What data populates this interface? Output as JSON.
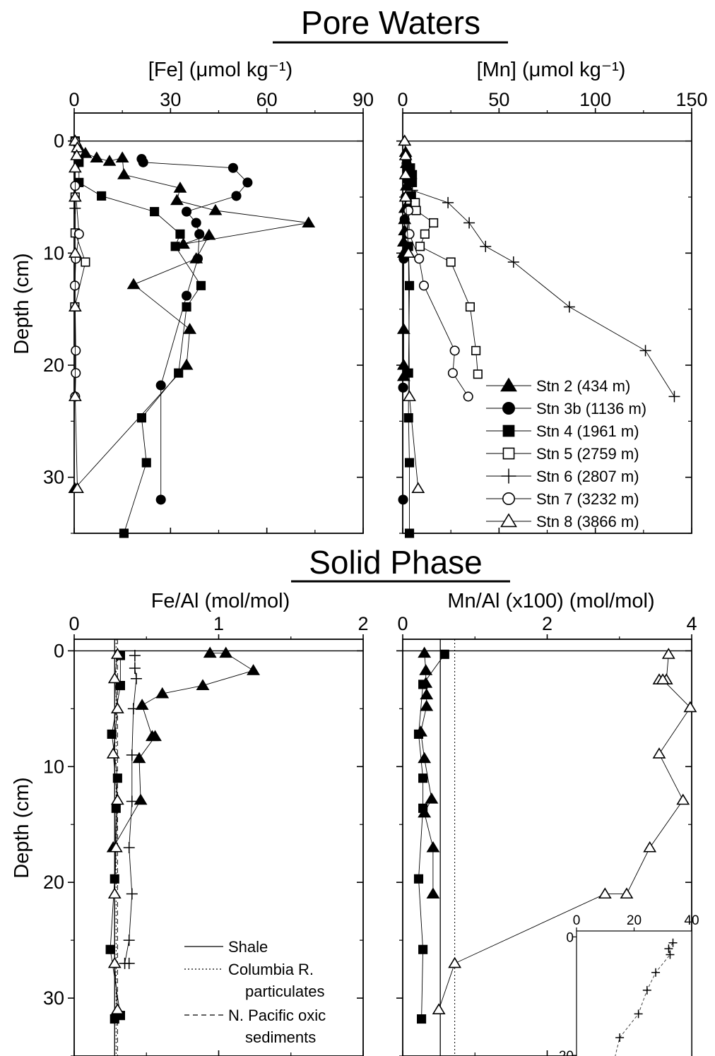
{
  "headings": {
    "pore": "Pore Waters",
    "solid": "Solid Phase"
  },
  "chart_data": [
    {
      "id": "fe_pore",
      "type": "scatter",
      "title": "",
      "xlabel": "[Fe] (μmol kg⁻¹)",
      "ylabel": "Depth (cm)",
      "xlim": [
        0,
        90
      ],
      "ylim": [
        35,
        -2.5
      ],
      "xticks": [
        0,
        30,
        60,
        90
      ],
      "yticks": [
        0,
        10,
        20,
        30
      ],
      "series": [
        {
          "name": "Stn 2 (434 m)",
          "marker": "triangle-filled",
          "x": [
            0.3,
            1.5,
            3.5,
            7,
            11,
            15,
            15.5,
            33,
            32,
            44,
            73,
            34,
            42,
            38,
            18.5,
            36,
            35,
            0.2
          ],
          "y": [
            0,
            0.6,
            1.1,
            1.5,
            1.8,
            1.5,
            3,
            4.2,
            5.3,
            6.2,
            7.3,
            9.2,
            8.4,
            10.5,
            12.8,
            16.8,
            20,
            31
          ]
        },
        {
          "name": "Stn 3b (1136 m)",
          "marker": "circle-filled",
          "x": [
            21,
            21.5,
            49.5,
            54,
            50.5,
            35,
            38,
            39,
            38.5,
            35,
            27,
            27
          ],
          "y": [
            1.6,
            1.9,
            2.4,
            3.7,
            4.9,
            6.3,
            7.3,
            8.3,
            10.5,
            13.8,
            21.8,
            32
          ]
        },
        {
          "name": "Stn 4 (1961 m)",
          "marker": "square-filled",
          "x": [
            0.3,
            1.5,
            1.5,
            8.5,
            25,
            33,
            31.5,
            39.5,
            35,
            32.5,
            21,
            22.5,
            15.5
          ],
          "y": [
            0,
            1.9,
            3.7,
            4.9,
            6.3,
            8.3,
            9.4,
            12.9,
            14.8,
            20.7,
            24.7,
            28.7,
            35
          ]
        },
        {
          "name": "Stn 5 (2759 m)",
          "marker": "square-open",
          "x": [
            0.3,
            0.3,
            0.3,
            3.5,
            0.2
          ],
          "y": [
            0,
            5,
            8.2,
            10.8,
            14.8
          ]
        },
        {
          "name": "Stn 6 (2807 m)",
          "marker": "plus",
          "x": [
            0.3,
            0.3
          ],
          "y": [
            0,
            6
          ]
        },
        {
          "name": "Stn 7 (3232 m)",
          "marker": "circle-open",
          "x": [
            0.3,
            0.3,
            1.5,
            0.5,
            0.2,
            0.5,
            0.5,
            0.3
          ],
          "y": [
            0,
            4,
            8.3,
            10.5,
            12.9,
            18.7,
            20.7,
            22.8
          ]
        },
        {
          "name": "Stn 8 (3866 m)",
          "marker": "triangle-open",
          "x": [
            0.3,
            1,
            0.8,
            0.3,
            0.3,
            0.3,
            0.3,
            0.3,
            1
          ],
          "y": [
            0,
            0.6,
            1.3,
            2.4,
            5,
            10,
            14.8,
            22.8,
            31
          ]
        }
      ]
    },
    {
      "id": "mn_pore",
      "type": "scatter",
      "title": "",
      "xlabel": "[Mn] (μmol kg⁻¹)",
      "ylabel": "",
      "xlim": [
        0,
        150
      ],
      "ylim": [
        35,
        -2.5
      ],
      "xticks": [
        0,
        50,
        100,
        150
      ],
      "yticks": [
        0,
        10,
        20,
        30
      ],
      "series": [
        {
          "name": "Stn 2 (434 m)",
          "marker": "triangle-filled",
          "x": [
            1,
            1.5,
            2,
            2,
            2,
            1.5,
            1.2,
            1,
            1,
            0.5,
            0.5,
            0.5,
            0.5,
            0.5
          ],
          "y": [
            0,
            1,
            2,
            3,
            4,
            5,
            6,
            7,
            8,
            9,
            10,
            16.8,
            20,
            21
          ]
        },
        {
          "name": "Stn 3b (1136 m)",
          "marker": "circle-filled",
          "x": [
            2,
            2,
            2.5,
            2.5,
            1.5,
            1,
            0.5,
            0.2,
            0.2
          ],
          "y": [
            1.6,
            2,
            2.5,
            3.5,
            5,
            7,
            10.5,
            22,
            32
          ]
        },
        {
          "name": "Stn 4 (1961 m)",
          "marker": "square-filled",
          "x": [
            4,
            5,
            5,
            4.5,
            3.5,
            2.5,
            3,
            3.5,
            3,
            3,
            3.5,
            3.5
          ],
          "y": [
            2.4,
            3,
            3.7,
            4.9,
            6,
            8.3,
            9.4,
            12.9,
            20.7,
            24.7,
            28.7,
            35
          ]
        },
        {
          "name": "Stn 5 (2759 m)",
          "marker": "square-open",
          "x": [
            6.5,
            7,
            16,
            11.5,
            9,
            25,
            35,
            38,
            39
          ],
          "y": [
            5.5,
            6.2,
            7.3,
            8.3,
            9.4,
            10.8,
            14.8,
            18.7,
            20.8
          ]
        },
        {
          "name": "Stn 6 (2807 m)",
          "marker": "plus",
          "x": [
            5,
            23.5,
            34.5,
            43,
            57.5,
            86.5,
            126,
            141
          ],
          "y": [
            4.4,
            5.5,
            7.3,
            9.4,
            10.8,
            14.8,
            18.7,
            22.8
          ]
        },
        {
          "name": "Stn 7 (3232 m)",
          "marker": "circle-open",
          "x": [
            3,
            3.5,
            8.5,
            11,
            27,
            26,
            34
          ],
          "y": [
            6.2,
            8.3,
            10.5,
            12.9,
            18.7,
            20.7,
            22.8
          ]
        },
        {
          "name": "Stn 8 (3866 m)",
          "marker": "triangle-open",
          "x": [
            1,
            1.5,
            1.5,
            1.5,
            3,
            3.5,
            8
          ],
          "y": [
            0,
            1.3,
            3,
            5,
            10,
            22.8,
            31
          ]
        }
      ]
    },
    {
      "id": "fe_solid",
      "type": "scatter",
      "title": "",
      "xlabel": "Fe/Al (mol/mol)",
      "ylabel": "Depth (cm)",
      "xlim": [
        0,
        2
      ],
      "ylim": [
        35,
        -1
      ],
      "xticks": [
        0,
        1,
        2
      ],
      "yticks": [
        0,
        10,
        20,
        30
      ],
      "reference_lines": [
        {
          "name": "Shale",
          "x": 0.28,
          "style": "solid"
        },
        {
          "name": "Columbia R. particulates",
          "x": 0.29,
          "style": "dotted"
        },
        {
          "name": "N. Pacific oxic sediments",
          "x": 0.3,
          "style": "dashed"
        }
      ],
      "series": [
        {
          "name": "Stn 2 (434 m)",
          "marker": "triangle-filled",
          "x": [
            0.94,
            1.05,
            1.24,
            0.89,
            0.61,
            0.47,
            0.54,
            0.56,
            0.45,
            0.46,
            0.27
          ],
          "y": [
            0.2,
            0.2,
            1.7,
            3,
            3.7,
            4.7,
            7.4,
            7.4,
            9.3,
            12.9,
            17
          ]
        },
        {
          "name": "Stn 4 (1961 m)",
          "marker": "square-filled",
          "x": [
            0.32,
            0.32,
            0.26,
            0.3,
            0.29,
            0.28,
            0.25,
            0.32,
            0.28
          ],
          "y": [
            0.4,
            3,
            7.2,
            11,
            13.6,
            19.7,
            25.8,
            31.5,
            31.8
          ]
        },
        {
          "name": "Stn 6 (2807 m)",
          "marker": "plus",
          "x": [
            0.42,
            0.42,
            0.43,
            0.41,
            0.4,
            0.4,
            0.38,
            0.4,
            0.38,
            0.35,
            0.38
          ],
          "y": [
            0.4,
            1.5,
            2.4,
            5,
            9,
            13,
            17,
            21,
            25,
            27,
            27
          ]
        },
        {
          "name": "Stn 8 (3866 m)",
          "marker": "triangle-open",
          "x": [
            0.3,
            0.28,
            0.3,
            0.27,
            0.3,
            0.29,
            0.28,
            0.28,
            0.3
          ],
          "y": [
            0.3,
            2.4,
            5,
            8.9,
            12.9,
            17,
            21,
            27,
            31
          ]
        }
      ]
    },
    {
      "id": "mn_solid",
      "type": "scatter",
      "title": "",
      "xlabel": "Mn/Al (x100) (mol/mol)",
      "ylabel": "",
      "xlim": [
        0,
        4
      ],
      "ylim": [
        35,
        -1
      ],
      "xticks": [
        0,
        2,
        4
      ],
      "yticks": [
        0,
        10,
        20,
        30
      ],
      "reference_lines": [
        {
          "name": "Shale",
          "x": 0.52,
          "style": "solid"
        },
        {
          "name": "Columbia R. particulates",
          "x": 0.72,
          "style": "dotted"
        }
      ],
      "series": [
        {
          "name": "Stn 2 (434 m)",
          "marker": "triangle-filled",
          "x": [
            0.3,
            0.32,
            0.32,
            0.33,
            0.33,
            0.25,
            0.3,
            0.4,
            0.3,
            0.42,
            0.42
          ],
          "y": [
            0.2,
            1.7,
            2.8,
            3.8,
            4.8,
            7,
            9.3,
            12.8,
            14,
            17,
            21
          ]
        },
        {
          "name": "Stn 4 (1961 m)",
          "marker": "square-filled",
          "x": [
            0.58,
            0.28,
            0.22,
            0.28,
            0.28,
            0.22,
            0.28,
            0.26
          ],
          "y": [
            0.3,
            2.9,
            7.2,
            11,
            13.6,
            19.7,
            25.8,
            31.8
          ]
        },
        {
          "name": "Stn 8 (3866 m)",
          "marker": "triangle-open",
          "x": [
            3.68,
            3.65,
            3.55,
            3.6,
            3.98,
            3.55,
            3.88,
            3.42,
            3.1,
            2.8,
            0.72,
            0.5
          ],
          "y": [
            0.3,
            2.5,
            2.5,
            2.5,
            4.9,
            8.9,
            12.9,
            17,
            21,
            21,
            27,
            31
          ]
        }
      ],
      "inset": {
        "series_name": "Stn 6 (2807 m)",
        "marker": "plus",
        "xlim": [
          0,
          40
        ],
        "ylim": [
          30,
          -1
        ],
        "xticks": [
          0,
          20,
          40
        ],
        "yticks": [
          0,
          20
        ],
        "x": [
          33.5,
          32,
          32.5,
          27.5,
          24.5,
          21.5,
          15,
          13,
          5,
          3
        ],
        "y": [
          1,
          2,
          3,
          6,
          9,
          13,
          17,
          21,
          25,
          27
        ]
      }
    }
  ]
}
